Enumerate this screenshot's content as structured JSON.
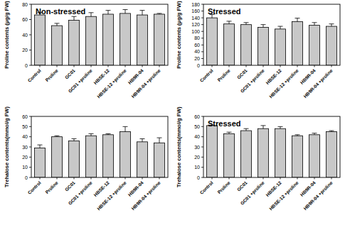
{
  "chart_data": [
    {
      "type": "bar",
      "title": "Non-stressed",
      "y_label": "Proline contents (μg/g FW)",
      "categories": [
        "Control",
        "Proline",
        "GC01",
        "GC01 +proline",
        "HBSE-12",
        "HBSE-12 +proline",
        "HB9R-04",
        "HB9R-04 +proline"
      ],
      "values": [
        66,
        52,
        59,
        64,
        67,
        68,
        66,
        67
      ],
      "errors": [
        3,
        3,
        5,
        5,
        5,
        5,
        6,
        1
      ],
      "color": "#c8c8c8",
      "ylim": [
        0,
        80
      ],
      "yticks": [
        0,
        20,
        40,
        60,
        80
      ],
      "grid": false
    },
    {
      "type": "bar",
      "title": "Stressed",
      "y_label": "Proline contents (μg/g FW)",
      "categories": [
        "Control",
        "Proline",
        "GC01",
        "GC01 +proline",
        "HBSE-12",
        "HBSE-12 +proline",
        "HB9R-04",
        "HB9R-04 +proline"
      ],
      "values": [
        140,
        122,
        120,
        112,
        107,
        129,
        118,
        115
      ],
      "errors": [
        10,
        8,
        6,
        8,
        8,
        10,
        8,
        7
      ],
      "color": "#c8c8c8",
      "ylim": [
        0,
        180
      ],
      "yticks": [
        0,
        20,
        40,
        60,
        80,
        100,
        120,
        140,
        160,
        180
      ],
      "grid": false
    },
    {
      "type": "bar",
      "y_label": "Trehalose contents(mmol/g FW)",
      "categories": [
        "Control",
        "Proline",
        "GC01",
        "GC01 +proline",
        "HBSE-12",
        "HBSE-12 +proline",
        "HB9R-04",
        "HB9R-04 +proline"
      ],
      "values": [
        29,
        40,
        36,
        41,
        42,
        45,
        35,
        34
      ],
      "errors": [
        3,
        1,
        2,
        2,
        1,
        5,
        3,
        5
      ],
      "color": "#c8c8c8",
      "ylim": [
        0,
        60
      ],
      "yticks": [
        0,
        10,
        20,
        30,
        40,
        50,
        60
      ],
      "grid": false
    },
    {
      "type": "bar",
      "title": "Stressed",
      "y_label": "Trehalose contents(mmol/g FW)",
      "categories": [
        "Control",
        "Proline",
        "GC01",
        "GC01 +proline",
        "HBSE-12",
        "HBSE-12 +proline",
        "HB9R-04",
        "HB9R-04 +proline"
      ],
      "values": [
        51,
        43,
        46,
        48,
        48,
        41,
        42,
        45
      ],
      "errors": [
        0.5,
        1.5,
        2,
        3,
        2,
        1,
        1.5,
        1
      ],
      "color": "#c8c8c8",
      "ylim": [
        0,
        60
      ],
      "yticks": [
        0,
        10,
        20,
        30,
        40,
        50,
        60
      ],
      "grid": false
    }
  ]
}
